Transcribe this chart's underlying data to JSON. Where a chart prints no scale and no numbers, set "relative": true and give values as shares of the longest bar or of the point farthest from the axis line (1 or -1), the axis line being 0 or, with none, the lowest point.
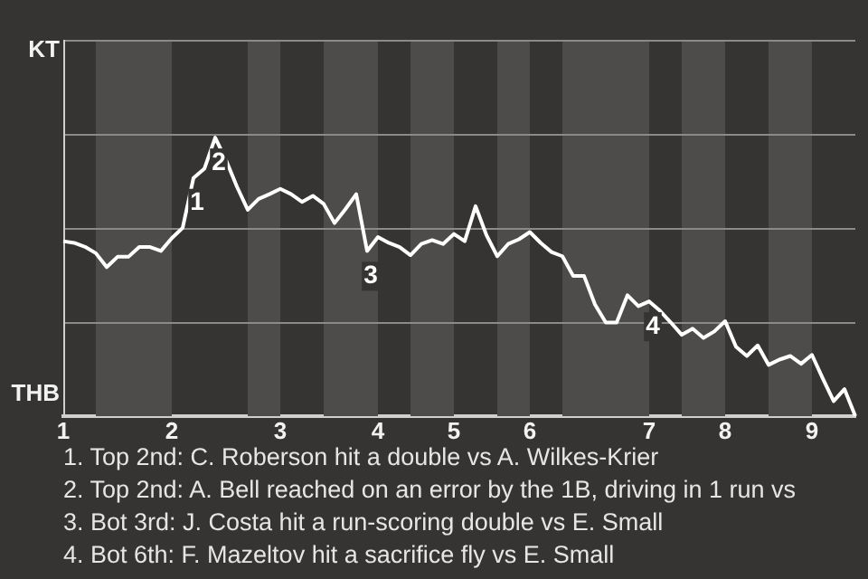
{
  "chart_data": {
    "type": "line",
    "relative": true,
    "categories": [
      "1",
      null,
      null,
      null,
      null,
      null,
      null,
      null,
      null,
      null,
      "2",
      null,
      null,
      null,
      null,
      null,
      null,
      null,
      null,
      null,
      "3",
      null,
      null,
      null,
      null,
      null,
      null,
      null,
      null,
      "4",
      null,
      null,
      null,
      null,
      null,
      null,
      "5",
      null,
      null,
      null,
      null,
      null,
      null,
      "6",
      null,
      null,
      null,
      null,
      null,
      null,
      null,
      null,
      null,
      null,
      "7",
      null,
      null,
      null,
      null,
      null,
      null,
      "8",
      null,
      null,
      null,
      null,
      null,
      null,
      null,
      "9",
      null,
      null,
      null,
      null
    ],
    "series": [
      {
        "color": "#ffffff",
        "values": [
          0.628,
          0.622,
          0.608,
          0.585,
          0.535,
          0.572,
          0.572,
          0.607,
          0.607,
          0.593,
          0.639,
          0.676,
          0.855,
          0.888,
          1,
          0.919,
          0.824,
          0.741,
          0.78,
          0.797,
          0.816,
          0.797,
          0.769,
          0.791,
          0.762,
          0.693,
          0.743,
          0.797,
          0.593,
          0.643,
          0.622,
          0.607,
          0.578,
          0.618,
          0.632,
          0.618,
          0.654,
          0.628,
          0.754,
          0.65,
          0.574,
          0.618,
          0.635,
          0.661,
          0.622,
          0.589,
          0.574,
          0.503,
          0.503,
          0.401,
          0.336,
          0.336,
          0.434,
          0.395,
          0.412,
          0.378,
          0.336,
          0.292,
          0.314,
          0.281,
          0.304,
          0.341,
          0.249,
          0.216,
          0.254,
          0.184,
          0.203,
          0.216,
          0.188,
          0.22,
          0.135,
          0.054,
          0.097,
          0
        ]
      }
    ],
    "ref_lines": [
      {
        "axis": "y",
        "value": 0.338,
        "color": "#8a8a8a"
      },
      {
        "axis": "y",
        "value": 0.676,
        "color": "#8a8a8a"
      },
      {
        "axis": "y",
        "value": 1.014,
        "color": "#8a8a8a"
      },
      {
        "axis": "y",
        "value": 1.351,
        "color": "#8a8a8a"
      }
    ],
    "legend": false,
    "marker": "none",
    "line_style": "solid",
    "annotations": [
      "KT",
      "THB",
      {
        "text": "1",
        "y": 0.855
      },
      {
        "text": "2",
        "y": 1
      },
      {
        "text": "3",
        "y": 0.593
      },
      {
        "text": "4",
        "y": 0.412
      },
      "1. Top 2nd: C. Roberson hit a double vs A. Wilkes-Krier",
      "2. Top 2nd: A. Bell reached on an error by the 1B, driving in 1 run vs",
      "3. Bot 3rd: J. Costa hit a run-scoring double vs E. Small",
      "4. Bot 6th: F. Mazeltov hit a sacrifice fly vs E. Small"
    ]
  }
}
